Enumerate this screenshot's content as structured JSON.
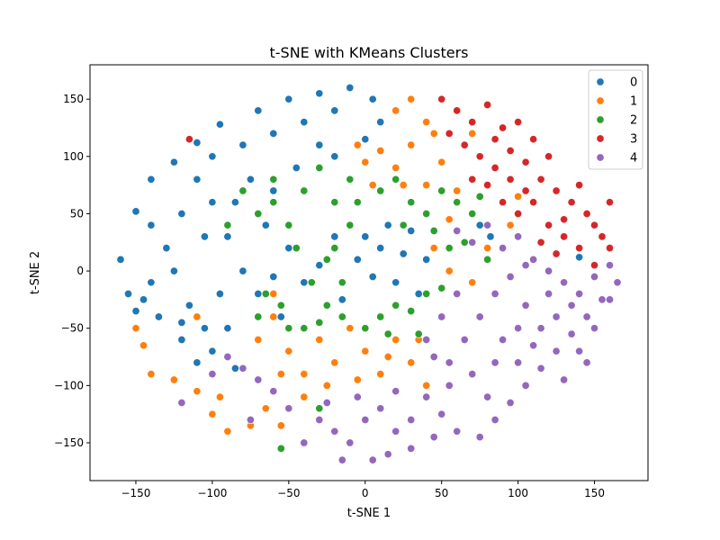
{
  "chart_data": {
    "type": "scatter",
    "title": "t-SNE with KMeans Clusters",
    "xlabel": "t-SNE 1",
    "ylabel": "t-SNE 2",
    "xlim": [
      -180,
      185
    ],
    "ylim": [
      -183,
      180
    ],
    "x_ticks": [
      -150,
      -100,
      -50,
      0,
      50,
      100,
      150
    ],
    "y_ticks": [
      -150,
      -100,
      -50,
      0,
      50,
      100,
      150
    ],
    "x_tick_labels": [
      "−150",
      "−100",
      "−50",
      "0",
      "50",
      "100",
      "150"
    ],
    "y_tick_labels": [
      "−150",
      "−100",
      "−50",
      "0",
      "50",
      "100",
      "150"
    ],
    "grid": false,
    "legend_position": "top-right",
    "series": [
      {
        "name": "0",
        "color": "#1f77b4",
        "points": [
          [
            -150,
            52
          ],
          [
            -140,
            80
          ],
          [
            -125,
            95
          ],
          [
            -110,
            112
          ],
          [
            -95,
            128
          ],
          [
            -70,
            140
          ],
          [
            -50,
            150
          ],
          [
            -30,
            155
          ],
          [
            -10,
            160
          ],
          [
            5,
            150
          ],
          [
            10,
            130
          ],
          [
            -160,
            10
          ],
          [
            -155,
            -20
          ],
          [
            -150,
            -35
          ],
          [
            -140,
            -10
          ],
          [
            -130,
            20
          ],
          [
            -120,
            50
          ],
          [
            -110,
            80
          ],
          [
            -100,
            60
          ],
          [
            -90,
            30
          ],
          [
            -80,
            0
          ],
          [
            -70,
            -20
          ],
          [
            -60,
            -5
          ],
          [
            -50,
            20
          ],
          [
            -40,
            -10
          ],
          [
            -30,
            5
          ],
          [
            -20,
            30
          ],
          [
            -15,
            -25
          ],
          [
            -5,
            10
          ],
          [
            0,
            30
          ],
          [
            5,
            -5
          ],
          [
            10,
            20
          ],
          [
            15,
            40
          ],
          [
            20,
            -10
          ],
          [
            25,
            15
          ],
          [
            30,
            35
          ],
          [
            35,
            -20
          ],
          [
            40,
            10
          ],
          [
            -135,
            -40
          ],
          [
            -120,
            -60
          ],
          [
            -110,
            -80
          ],
          [
            -100,
            -70
          ],
          [
            -90,
            -50
          ],
          [
            -85,
            -85
          ],
          [
            -95,
            -20
          ],
          [
            -115,
            -30
          ],
          [
            -125,
            0
          ],
          [
            -140,
            40
          ],
          [
            -100,
            100
          ],
          [
            -80,
            110
          ],
          [
            -60,
            120
          ],
          [
            -40,
            130
          ],
          [
            -20,
            140
          ],
          [
            0,
            115
          ],
          [
            -75,
            80
          ],
          [
            -60,
            70
          ],
          [
            -45,
            90
          ],
          [
            -30,
            110
          ],
          [
            -20,
            100
          ],
          [
            -85,
            60
          ],
          [
            -65,
            40
          ],
          [
            -120,
            -45
          ],
          [
            -105,
            -50
          ],
          [
            -55,
            -40
          ],
          [
            -105,
            30
          ],
          [
            -145,
            -25
          ],
          [
            75,
            40
          ],
          [
            82,
            30
          ],
          [
            140,
            12
          ]
        ]
      },
      {
        "name": "1",
        "color": "#ff7f0e",
        "points": [
          [
            -5,
            110
          ],
          [
            0,
            95
          ],
          [
            10,
            105
          ],
          [
            20,
            90
          ],
          [
            30,
            110
          ],
          [
            40,
            130
          ],
          [
            30,
            150
          ],
          [
            20,
            140
          ],
          [
            45,
            120
          ],
          [
            50,
            95
          ],
          [
            40,
            75
          ],
          [
            30,
            60
          ],
          [
            60,
            70
          ],
          [
            55,
            45
          ],
          [
            45,
            20
          ],
          [
            55,
            0
          ],
          [
            70,
            -10
          ],
          [
            80,
            20
          ],
          [
            95,
            40
          ],
          [
            100,
            65
          ],
          [
            -60,
            -40
          ],
          [
            -70,
            -60
          ],
          [
            -50,
            -70
          ],
          [
            -40,
            -90
          ],
          [
            -30,
            -60
          ],
          [
            -20,
            -80
          ],
          [
            -10,
            -50
          ],
          [
            0,
            -70
          ],
          [
            10,
            -90
          ],
          [
            20,
            -60
          ],
          [
            30,
            -80
          ],
          [
            40,
            -100
          ],
          [
            -55,
            -90
          ],
          [
            -65,
            -120
          ],
          [
            -75,
            -135
          ],
          [
            -90,
            -140
          ],
          [
            -100,
            -125
          ],
          [
            -110,
            -105
          ],
          [
            -125,
            -95
          ],
          [
            -150,
            -50
          ],
          [
            -145,
            -65
          ],
          [
            -140,
            -90
          ],
          [
            -55,
            -135
          ],
          [
            -40,
            -110
          ],
          [
            -25,
            -100
          ],
          [
            -5,
            -95
          ],
          [
            15,
            -75
          ],
          [
            35,
            -60
          ],
          [
            -110,
            -40
          ],
          [
            -95,
            -110
          ],
          [
            -60,
            -20
          ],
          [
            5,
            75
          ],
          [
            25,
            75
          ],
          [
            70,
            120
          ]
        ]
      },
      {
        "name": "2",
        "color": "#2ca02c",
        "points": [
          [
            -80,
            70
          ],
          [
            -70,
            50
          ],
          [
            -60,
            60
          ],
          [
            -50,
            40
          ],
          [
            -40,
            70
          ],
          [
            -30,
            90
          ],
          [
            -20,
            60
          ],
          [
            -10,
            80
          ],
          [
            -45,
            20
          ],
          [
            -35,
            -10
          ],
          [
            -25,
            -30
          ],
          [
            -15,
            -40
          ],
          [
            -55,
            -30
          ],
          [
            -65,
            -20
          ],
          [
            -50,
            -50
          ],
          [
            -30,
            -45
          ],
          [
            -20,
            20
          ],
          [
            -10,
            40
          ],
          [
            -25,
            10
          ],
          [
            -15,
            -10
          ],
          [
            10,
            70
          ],
          [
            20,
            80
          ],
          [
            30,
            60
          ],
          [
            40,
            50
          ],
          [
            50,
            70
          ],
          [
            60,
            60
          ],
          [
            70,
            50
          ],
          [
            45,
            35
          ],
          [
            55,
            20
          ],
          [
            65,
            25
          ],
          [
            0,
            -50
          ],
          [
            10,
            -40
          ],
          [
            20,
            -30
          ],
          [
            30,
            -35
          ],
          [
            40,
            -20
          ],
          [
            50,
            -15
          ],
          [
            35,
            -55
          ],
          [
            15,
            -55
          ],
          [
            -30,
            -120
          ],
          [
            -55,
            -155
          ],
          [
            -40,
            -50
          ],
          [
            75,
            65
          ],
          [
            80,
            10
          ],
          [
            -5,
            60
          ],
          [
            -70,
            -40
          ],
          [
            25,
            40
          ],
          [
            -90,
            40
          ],
          [
            -60,
            80
          ]
        ]
      },
      {
        "name": "3",
        "color": "#d62728",
        "points": [
          [
            60,
            140
          ],
          [
            70,
            130
          ],
          [
            80,
            145
          ],
          [
            90,
            125
          ],
          [
            100,
            130
          ],
          [
            110,
            115
          ],
          [
            120,
            100
          ],
          [
            65,
            110
          ],
          [
            75,
            100
          ],
          [
            85,
            90
          ],
          [
            95,
            80
          ],
          [
            105,
            95
          ],
          [
            115,
            80
          ],
          [
            125,
            70
          ],
          [
            135,
            60
          ],
          [
            145,
            50
          ],
          [
            150,
            40
          ],
          [
            155,
            30
          ],
          [
            160,
            20
          ],
          [
            130,
            30
          ],
          [
            120,
            40
          ],
          [
            110,
            60
          ],
          [
            100,
            50
          ],
          [
            90,
            60
          ],
          [
            80,
            75
          ],
          [
            70,
            80
          ],
          [
            140,
            20
          ],
          [
            150,
            5
          ],
          [
            125,
            15
          ],
          [
            115,
            25
          ],
          [
            85,
            115
          ],
          [
            95,
            105
          ],
          [
            140,
            75
          ],
          [
            55,
            120
          ],
          [
            130,
            45
          ],
          [
            105,
            70
          ],
          [
            160,
            60
          ],
          [
            -115,
            115
          ],
          [
            50,
            150
          ]
        ]
      },
      {
        "name": "4",
        "color": "#9467bd",
        "points": [
          [
            60,
            35
          ],
          [
            70,
            25
          ],
          [
            80,
            40
          ],
          [
            90,
            20
          ],
          [
            100,
            30
          ],
          [
            110,
            10
          ],
          [
            120,
            0
          ],
          [
            130,
            -10
          ],
          [
            140,
            -20
          ],
          [
            150,
            -5
          ],
          [
            160,
            5
          ],
          [
            165,
            -10
          ],
          [
            155,
            -25
          ],
          [
            145,
            -40
          ],
          [
            135,
            -55
          ],
          [
            125,
            -70
          ],
          [
            115,
            -85
          ],
          [
            105,
            -100
          ],
          [
            95,
            -115
          ],
          [
            85,
            -130
          ],
          [
            75,
            -145
          ],
          [
            60,
            -140
          ],
          [
            50,
            -125
          ],
          [
            40,
            -110
          ],
          [
            30,
            -130
          ],
          [
            20,
            -140
          ],
          [
            10,
            -120
          ],
          [
            0,
            -130
          ],
          [
            -10,
            -150
          ],
          [
            -20,
            -140
          ],
          [
            -30,
            -130
          ],
          [
            -40,
            -150
          ],
          [
            -50,
            -120
          ],
          [
            -60,
            -105
          ],
          [
            -70,
            -95
          ],
          [
            -80,
            -85
          ],
          [
            -90,
            -75
          ],
          [
            -100,
            -90
          ],
          [
            -120,
            -115
          ],
          [
            -15,
            -165
          ],
          [
            5,
            -165
          ],
          [
            15,
            -160
          ],
          [
            30,
            -155
          ],
          [
            45,
            -145
          ],
          [
            55,
            -80
          ],
          [
            65,
            -60
          ],
          [
            75,
            -40
          ],
          [
            85,
            -20
          ],
          [
            95,
            -5
          ],
          [
            105,
            -30
          ],
          [
            115,
            -50
          ],
          [
            125,
            -40
          ],
          [
            135,
            -30
          ],
          [
            70,
            -90
          ],
          [
            80,
            -110
          ],
          [
            90,
            -60
          ],
          [
            100,
            -80
          ],
          [
            110,
            -65
          ],
          [
            120,
            -20
          ],
          [
            140,
            -70
          ],
          [
            150,
            -50
          ],
          [
            160,
            -25
          ],
          [
            -25,
            -115
          ],
          [
            -5,
            -110
          ],
          [
            60,
            -20
          ],
          [
            50,
            -40
          ],
          [
            40,
            -60
          ],
          [
            55,
            -100
          ],
          [
            85,
            -80
          ],
          [
            100,
            -50
          ],
          [
            130,
            -95
          ],
          [
            -75,
            -130
          ],
          [
            45,
            -75
          ],
          [
            20,
            -105
          ],
          [
            105,
            5
          ],
          [
            145,
            -80
          ]
        ]
      }
    ]
  }
}
